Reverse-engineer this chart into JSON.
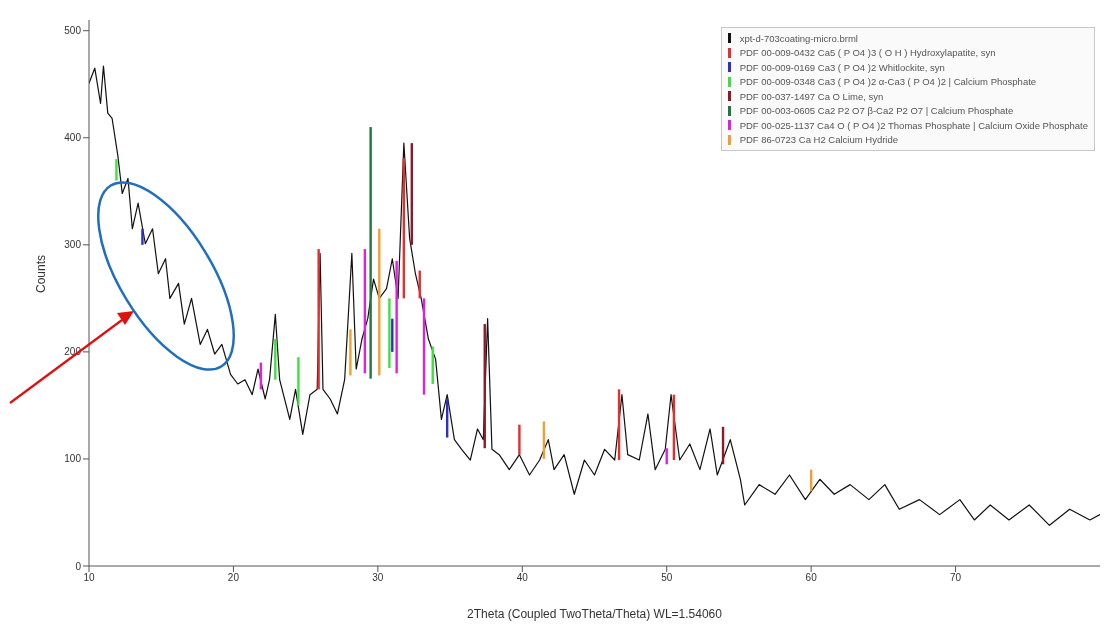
{
  "chart_data": {
    "type": "line",
    "xlabel": "2Theta (Coupled TwoTheta/Theta) WL=1.54060",
    "ylabel": "Counts",
    "xlim": [
      10,
      80
    ],
    "xticks": [
      10,
      20,
      30,
      40,
      50,
      60,
      70
    ],
    "ylim": [
      0,
      510
    ],
    "yticks": [
      0,
      100,
      200,
      300,
      400,
      500
    ],
    "legend": "top right",
    "marker": "none",
    "line_style": "solid",
    "series": [
      {
        "name": "xpt-d-703coating-micro.brml",
        "color": "#111111",
        "x": [
          10.0,
          10.4,
          10.8,
          11.0,
          11.3,
          11.6,
          12.0,
          12.3,
          12.7,
          13.0,
          13.4,
          13.9,
          14.4,
          14.8,
          15.3,
          15.6,
          16.2,
          16.6,
          17.1,
          17.7,
          18.2,
          18.7,
          19.2,
          19.8,
          20.3,
          20.8,
          21.3,
          21.7,
          22.2,
          22.5,
          22.9,
          23.2,
          23.9,
          24.3,
          24.8,
          25.3,
          25.8,
          26.0,
          26.2,
          26.7,
          27.2,
          27.7,
          28.2,
          28.5,
          28.9,
          29.3,
          29.7,
          30.1,
          30.6,
          31.0,
          31.4,
          31.8,
          32.2,
          32.6,
          33.0,
          33.5,
          34.0,
          34.4,
          34.8,
          35.3,
          35.8,
          36.4,
          36.9,
          37.3,
          37.6,
          37.9,
          38.4,
          39.1,
          39.8,
          40.5,
          41.2,
          41.8,
          42.2,
          42.9,
          43.6,
          44.3,
          45.0,
          45.7,
          46.4,
          46.9,
          47.3,
          48.1,
          48.7,
          49.2,
          49.9,
          50.3,
          50.9,
          51.6,
          52.3,
          53.0,
          53.5,
          54.4,
          55.1,
          55.4,
          56.4,
          57.5,
          58.5,
          59.6,
          60.6,
          61.6,
          62.7,
          64.0,
          65.1,
          66.1,
          67.5,
          68.9,
          70.3,
          71.3,
          72.4,
          73.7,
          75.1,
          76.5,
          77.9,
          79.3,
          80.0
        ],
        "values": [
          451,
          465,
          432,
          467,
          423,
          418,
          383,
          348,
          362,
          315,
          339,
          301,
          315,
          273,
          287,
          250,
          264,
          226,
          250,
          207,
          221,
          198,
          207,
          179,
          170,
          174,
          160,
          184,
          156,
          174,
          235,
          174,
          137,
          165,
          123,
          160,
          165,
          292,
          165,
          156,
          142,
          174,
          292,
          184,
          212,
          231,
          268,
          250,
          259,
          287,
          250,
          395,
          306,
          273,
          250,
          212,
          193,
          137,
          160,
          118,
          109,
          99,
          128,
          118,
          231,
          109,
          104,
          90,
          104,
          85,
          99,
          118,
          90,
          104,
          67,
          99,
          85,
          109,
          99,
          160,
          104,
          99,
          142,
          90,
          109,
          160,
          99,
          114,
          90,
          128,
          85,
          118,
          81,
          57,
          76,
          67,
          85,
          62,
          81,
          67,
          76,
          62,
          76,
          53,
          62,
          48,
          62,
          43,
          57,
          43,
          57,
          38,
          53,
          43,
          48
        ]
      },
      {
        "type": "bar",
        "name": "PDF 00-009-0432 Ca5 ( P O4 )3 ( O H ) Hydroxylapatite, syn",
        "color": "#e03030",
        "x": [
          25.9,
          31.8,
          32.9,
          39.8,
          46.7,
          50.5
        ],
        "base": [
          165,
          250,
          250,
          104,
          99,
          99
        ],
        "values": [
          131,
          131,
          26,
          28,
          66,
          61
        ]
      },
      {
        "type": "bar",
        "name": "PDF 00-009-0169 Ca3 ( P O4 )2 Whitlockite, syn",
        "color": "#3030c0",
        "x": [
          13.7,
          31.0,
          34.8
        ],
        "base": [
          300,
          200,
          120
        ],
        "values": [
          15,
          31,
          36
        ]
      },
      {
        "type": "bar",
        "name": "PDF 00-009-0348 Ca3 ( P O4 )2 α-Ca3 ( P O4 )2 | Calcium Phosphate",
        "color": "#40e040",
        "x": [
          11.9,
          22.9,
          24.5,
          30.8,
          33.8
        ],
        "base": [
          360,
          174,
          150,
          185,
          170
        ],
        "values": [
          20,
          38,
          45,
          65,
          35
        ]
      },
      {
        "type": "bar",
        "name": "PDF 00-037-1497 Ca O Lime, syn",
        "color": "#8b1a2a",
        "x": [
          32.35,
          37.4,
          53.9
        ],
        "base": [
          300,
          110,
          95
        ],
        "values": [
          95,
          116,
          35
        ]
      },
      {
        "type": "bar",
        "name": "PDF 00-003-0605 Ca2 P2 O7 β-Ca2 P2 O7 | Calcium Phosphate",
        "color": "#1e7a3a",
        "x": [
          29.5
        ],
        "base": [
          175
        ],
        "values": [
          235
        ]
      },
      {
        "type": "bar",
        "name": "PDF 00-025-1137 Ca4 O ( P O4 )2 Thomas Phosphate | Calcium Oxide Phosphate",
        "color": "#e020e0",
        "x": [
          21.9,
          29.1,
          31.3,
          33.2,
          50.0
        ],
        "base": [
          165,
          180,
          180,
          160,
          95
        ],
        "values": [
          25,
          116,
          105,
          90,
          15
        ]
      },
      {
        "type": "bar",
        "name": "PDF 86-0723 Ca H2 Calcium Hydride",
        "color": "#f0a030",
        "x": [
          28.1,
          30.1,
          41.5,
          60.0
        ],
        "base": [
          178,
          178,
          100,
          70
        ],
        "values": [
          43,
          137,
          35,
          20
        ]
      }
    ]
  }
}
